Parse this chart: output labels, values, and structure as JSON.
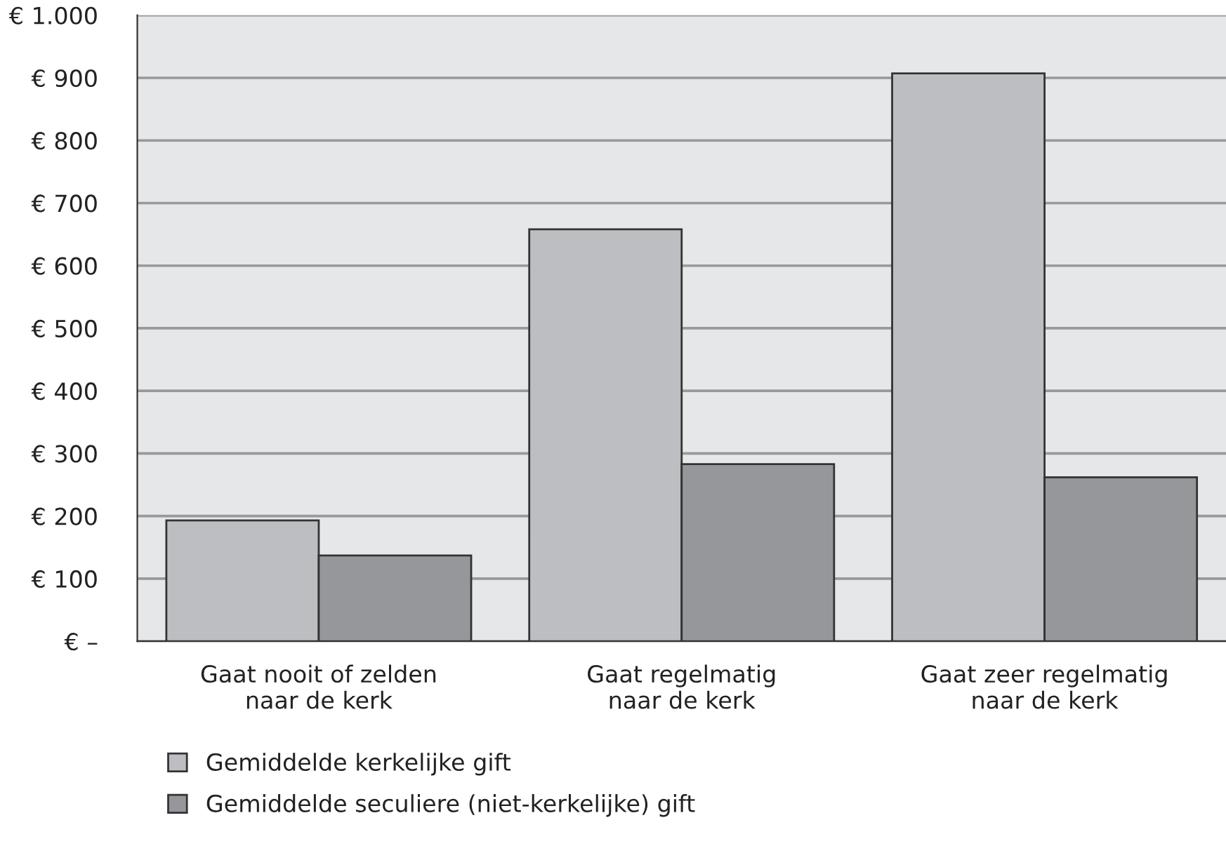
{
  "chart_data": {
    "type": "bar",
    "categories": [
      "Gaat nooit of zelden\nnaar de kerk",
      "Gaat regelmatig\nnaar de kerk",
      "Gaat zeer regelmatig\nnaar de kerk"
    ],
    "series": [
      {
        "name": "Gemiddelde kerkelijke gift",
        "color": "#bdbec2",
        "values": [
          193,
          658,
          907
        ]
      },
      {
        "name": "Gemiddelde seculiere (niet-kerkelijke) gift",
        "color": "#96979b",
        "values": [
          137,
          283,
          262
        ]
      }
    ],
    "ylim": [
      0,
      1000
    ],
    "yticks": [
      {
        "value": 0,
        "label": "€ –"
      },
      {
        "value": 100,
        "label": "€ 100"
      },
      {
        "value": 200,
        "label": "€ 200"
      },
      {
        "value": 300,
        "label": "€ 300"
      },
      {
        "value": 400,
        "label": "€ 400"
      },
      {
        "value": 500,
        "label": "€ 500"
      },
      {
        "value": 600,
        "label": "€ 600"
      },
      {
        "value": 700,
        "label": "€ 700"
      },
      {
        "value": 800,
        "label": "€ 800"
      },
      {
        "value": 900,
        "label": "€ 900"
      },
      {
        "value": 1000,
        "label": "€ 1.000"
      }
    ],
    "grid": "y",
    "legend": "bottom left"
  }
}
